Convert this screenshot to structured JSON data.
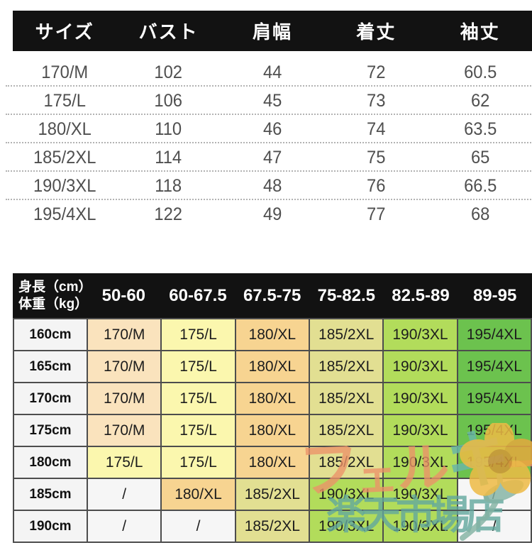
{
  "colors": {
    "header_bg": "#121212",
    "grid_border": "#4d4d4d",
    "size_colors": {
      "170/M": "#fae3bd",
      "175/L": "#fbf7ae",
      "180/XL": "#f7d491",
      "185/2XL": "#e2df92",
      "190/3XL": "#b2dc5b",
      "195/4XL": "#6cc24e",
      "/": "#f6f6f6"
    }
  },
  "size_table": {
    "headers": [
      "サイズ",
      "バスト",
      "肩幅",
      "着丈",
      "袖丈"
    ],
    "rows": [
      [
        "170/M",
        "102",
        "44",
        "72",
        "60.5"
      ],
      [
        "175/L",
        "106",
        "45",
        "73",
        "62"
      ],
      [
        "180/XL",
        "110",
        "46",
        "74",
        "63.5"
      ],
      [
        "185/2XL",
        "114",
        "47",
        "75",
        "65"
      ],
      [
        "190/3XL",
        "118",
        "48",
        "76",
        "66.5"
      ],
      [
        "195/4XL",
        "122",
        "49",
        "77",
        "68"
      ]
    ]
  },
  "fit_table": {
    "corner_line1": "身長（cm）",
    "corner_line2": "体重（kg）",
    "weight_headers": [
      "50-60",
      "60-67.5",
      "67.5-75",
      "75-82.5",
      "82.5-89",
      "89-95"
    ],
    "rows": [
      {
        "height": "160cm",
        "cells": [
          "170/M",
          "175/L",
          "180/XL",
          "185/2XL",
          "190/3XL",
          "195/4XL"
        ]
      },
      {
        "height": "165cm",
        "cells": [
          "170/M",
          "175/L",
          "180/XL",
          "185/2XL",
          "190/3XL",
          "195/4XL"
        ]
      },
      {
        "height": "170cm",
        "cells": [
          "170/M",
          "175/L",
          "180/XL",
          "185/2XL",
          "190/3XL",
          "195/4XL"
        ]
      },
      {
        "height": "175cm",
        "cells": [
          "170/M",
          "175/L",
          "180/XL",
          "185/2XL",
          "190/3XL",
          "195/4XL"
        ]
      },
      {
        "height": "180cm",
        "cells": [
          "175/L",
          "175/L",
          "180/XL",
          "185/2XL",
          "190/3XL",
          "195/4XL"
        ]
      },
      {
        "height": "185cm",
        "cells": [
          "/",
          "180/XL",
          "185/2XL",
          "190/3XL",
          "190/3XL",
          "/"
        ]
      },
      {
        "height": "190cm",
        "cells": [
          "/",
          "/",
          "185/2XL",
          "190/3XL",
          "190/3XL",
          "/"
        ]
      }
    ]
  },
  "watermark": {
    "shop_name_chars": [
      {
        "ch": "フ",
        "color": "rgba(236,146,105,0.78)"
      },
      {
        "ch": "ェ",
        "color": "rgba(236,146,105,0.78)"
      },
      {
        "ch": "ル",
        "color": "rgba(236,146,105,0.78)"
      },
      {
        "ch": "キ",
        "color": "rgba(106,182,166,0.85)"
      },
      {
        "ch": "ー",
        "color": "rgba(236,146,105,0.78)"
      }
    ],
    "store_suffix": "楽天市場店",
    "flower_colors": {
      "petal": "#eebb45",
      "petal_dark": "#e4a93e",
      "center": "#d49738",
      "stem": "#84b3a4"
    }
  }
}
